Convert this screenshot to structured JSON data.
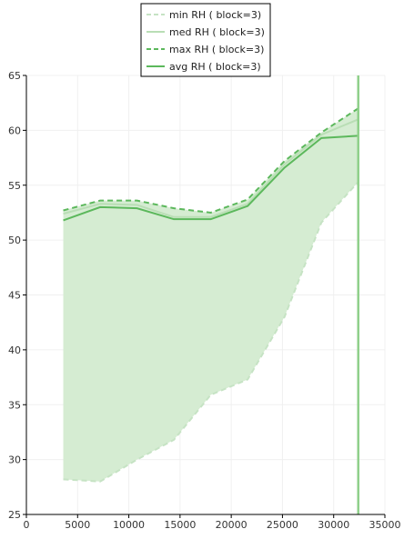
{
  "chart_data": {
    "type": "line",
    "title": "",
    "xlabel": "",
    "ylabel": "",
    "xlim": [
      0,
      35000
    ],
    "ylim": [
      25,
      65
    ],
    "x_ticks": [
      0,
      5000,
      10000,
      15000,
      20000,
      25000,
      30000,
      35000
    ],
    "y_ticks": [
      25,
      30,
      35,
      40,
      45,
      50,
      55,
      60,
      65
    ],
    "grid": true,
    "legend_position": "top-center",
    "x": [
      3600,
      7200,
      10800,
      14400,
      18000,
      21600,
      25200,
      28800,
      32400
    ],
    "series": [
      {
        "name": "min RH ( block=3)",
        "style": "dashed",
        "color": "#c6e3c4",
        "values": [
          28.2,
          28.0,
          30.0,
          31.8,
          35.9,
          37.3,
          43.0,
          51.6,
          55.3
        ]
      },
      {
        "name": "med RH ( block=3)",
        "style": "solid",
        "color": "#b9deb5",
        "values": [
          52.4,
          53.3,
          53.2,
          52.1,
          52.1,
          53.3,
          56.9,
          59.6,
          61.0
        ]
      },
      {
        "name": "max RH ( block=3)",
        "style": "dashed",
        "color": "#5cb85c",
        "values": [
          52.7,
          53.6,
          53.6,
          52.9,
          52.5,
          53.7,
          57.2,
          59.8,
          62.0
        ]
      },
      {
        "name": "avg RH ( block=3)",
        "style": "solid",
        "color": "#5cb85c",
        "values": [
          51.8,
          53.0,
          52.9,
          51.9,
          51.9,
          53.1,
          56.6,
          59.3,
          59.5
        ]
      }
    ],
    "fill_between": {
      "lower": "min RH ( block=3)",
      "upper": "max RH ( block=3)",
      "color": "#d5ecd2"
    },
    "vertical_marker": {
      "x": 32400,
      "color": "#8fd08a"
    }
  }
}
